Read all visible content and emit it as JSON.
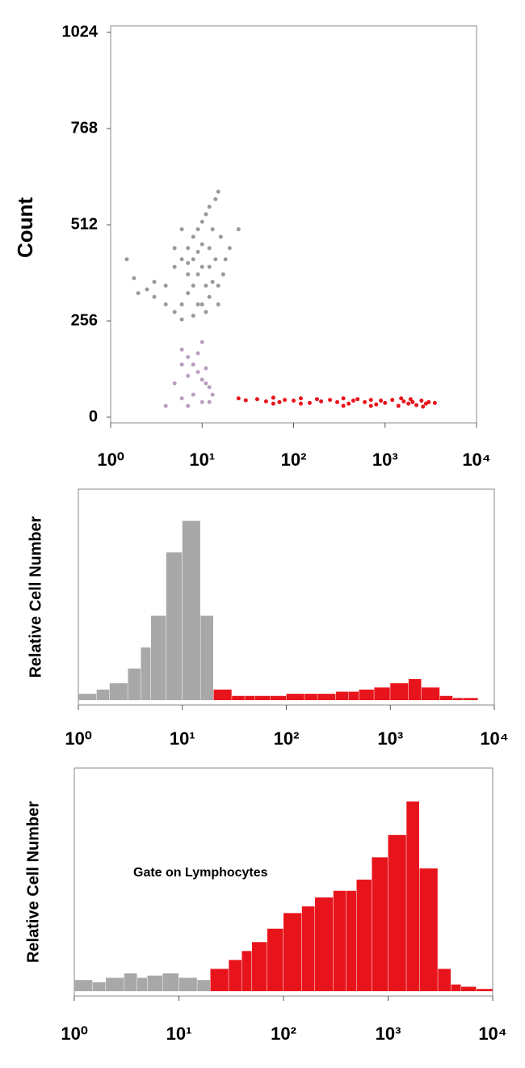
{
  "chart_data": [
    {
      "type": "scatter",
      "ylabel": "Count",
      "xscale": "log",
      "xlim": [
        1,
        10000
      ],
      "ylim": [
        0,
        1024
      ],
      "xticks": [
        {
          "value": 1,
          "label": "10⁰"
        },
        {
          "value": 10,
          "label": "10¹"
        },
        {
          "value": 100,
          "label": "10²"
        },
        {
          "value": 1000,
          "label": "10³"
        },
        {
          "value": 10000,
          "label": "10⁴"
        }
      ],
      "yticks": [
        0,
        256,
        512,
        768,
        1024
      ],
      "series": [
        {
          "color": "#9a9a9a",
          "x": [
            3,
            4,
            5,
            6,
            7,
            8,
            9,
            10,
            11,
            12,
            14,
            15,
            13,
            12,
            10,
            9,
            8,
            7,
            6,
            5,
            4,
            3,
            2.5,
            2,
            1.8,
            6,
            8,
            10,
            12,
            15,
            17,
            18,
            20,
            16,
            14,
            11,
            9,
            7,
            5,
            6,
            8,
            10,
            12,
            9,
            7,
            13,
            15,
            11,
            1.5,
            25
          ],
          "y": [
            320,
            350,
            400,
            420,
            450,
            480,
            500,
            520,
            540,
            560,
            580,
            600,
            500,
            450,
            400,
            380,
            350,
            330,
            300,
            280,
            300,
            360,
            340,
            330,
            370,
            260,
            270,
            300,
            320,
            350,
            380,
            420,
            450,
            480,
            420,
            350,
            300,
            380,
            450,
            500,
            420,
            460,
            400,
            440,
            410,
            360,
            300,
            280,
            420,
            500
          ]
        },
        {
          "color": "#b79fbd",
          "x": [
            6,
            7,
            8,
            9,
            10,
            11,
            12,
            8,
            10,
            6,
            5,
            7,
            9,
            11,
            13,
            7,
            4,
            12,
            6,
            10
          ],
          "y": [
            180,
            160,
            140,
            120,
            100,
            90,
            80,
            60,
            40,
            50,
            90,
            110,
            170,
            130,
            60,
            30,
            30,
            40,
            140,
            200
          ]
        },
        {
          "color": "#e8141c",
          "x": [
            25,
            30,
            40,
            50,
            60,
            70,
            80,
            100,
            120,
            150,
            180,
            200,
            250,
            300,
            350,
            400,
            450,
            500,
            600,
            700,
            800,
            900,
            1000,
            1200,
            1400,
            1600,
            1800,
            2000,
            2200,
            2500,
            2800,
            3000,
            3500,
            1500,
            700,
            350,
            120,
            2600,
            1900,
            60
          ],
          "y": [
            50,
            45,
            48,
            42,
            52,
            40,
            46,
            44,
            50,
            38,
            48,
            42,
            46,
            40,
            50,
            36,
            44,
            48,
            40,
            46,
            34,
            44,
            38,
            46,
            30,
            42,
            36,
            40,
            32,
            44,
            36,
            40,
            38,
            50,
            30,
            30,
            36,
            28,
            48,
            36
          ]
        }
      ]
    },
    {
      "type": "histogram",
      "ylabel": "Relative Cell Number",
      "xscale": "log",
      "xlim": [
        1,
        10000
      ],
      "ylim": [
        0,
        100
      ],
      "xticks": [
        {
          "value": 1,
          "label": "10⁰"
        },
        {
          "value": 10,
          "label": "10¹"
        },
        {
          "value": 100,
          "label": "10²"
        },
        {
          "value": 1000,
          "label": "10³"
        },
        {
          "value": 10000,
          "label": "10⁴"
        }
      ],
      "bins": [
        1,
        1.5,
        2,
        3,
        4,
        5,
        7,
        10,
        15,
        20,
        30,
        40,
        50,
        70,
        100,
        150,
        200,
        300,
        400,
        500,
        700,
        1000,
        1500,
        2000,
        3000,
        4000,
        5000,
        7000,
        10000
      ],
      "counts": [
        3,
        5,
        8,
        15,
        25,
        40,
        70,
        85,
        40,
        5,
        2,
        2,
        2,
        2,
        3,
        3,
        3,
        4,
        4,
        5,
        6,
        8,
        10,
        6,
        2,
        1,
        1,
        0
      ],
      "colors": [
        "#a8a8a8",
        "#a8a8a8",
        "#a8a8a8",
        "#a8a8a8",
        "#a8a8a8",
        "#a8a8a8",
        "#a8a8a8",
        "#a8a8a8",
        "#a8a8a8",
        "#e8141c",
        "#e8141c",
        "#e8141c",
        "#e8141c",
        "#e8141c",
        "#e8141c",
        "#e8141c",
        "#e8141c",
        "#e8141c",
        "#e8141c",
        "#e8141c",
        "#e8141c",
        "#e8141c",
        "#e8141c",
        "#e8141c",
        "#e8141c",
        "#e8141c",
        "#e8141c",
        "#e8141c"
      ]
    },
    {
      "type": "histogram",
      "ylabel": "Relative Cell Number",
      "annotation": "Gate on Lymphocytes",
      "xscale": "log",
      "xlim": [
        1,
        10000
      ],
      "ylim": [
        0,
        100
      ],
      "xticks": [
        {
          "value": 1,
          "label": "10⁰"
        },
        {
          "value": 10,
          "label": "10¹"
        },
        {
          "value": 100,
          "label": "10²"
        },
        {
          "value": 1000,
          "label": "10³"
        },
        {
          "value": 10000,
          "label": "10⁴"
        }
      ],
      "bins": [
        1,
        1.5,
        2,
        3,
        4,
        5,
        7,
        10,
        15,
        20,
        30,
        40,
        50,
        70,
        100,
        150,
        200,
        300,
        400,
        500,
        700,
        1000,
        1500,
        2000,
        3000,
        4000,
        5000,
        7000,
        10000
      ],
      "counts": [
        5,
        4,
        6,
        8,
        6,
        7,
        8,
        6,
        5,
        10,
        14,
        18,
        22,
        28,
        35,
        38,
        42,
        45,
        45,
        50,
        60,
        70,
        85,
        55,
        10,
        3,
        2,
        1
      ],
      "colors": [
        "#a8a8a8",
        "#a8a8a8",
        "#a8a8a8",
        "#a8a8a8",
        "#a8a8a8",
        "#a8a8a8",
        "#a8a8a8",
        "#a8a8a8",
        "#a8a8a8",
        "#e8141c",
        "#e8141c",
        "#e8141c",
        "#e8141c",
        "#e8141c",
        "#e8141c",
        "#e8141c",
        "#e8141c",
        "#e8141c",
        "#e8141c",
        "#e8141c",
        "#e8141c",
        "#e8141c",
        "#e8141c",
        "#e8141c",
        "#e8141c",
        "#e8141c",
        "#e8141c",
        "#e8141c"
      ]
    }
  ]
}
